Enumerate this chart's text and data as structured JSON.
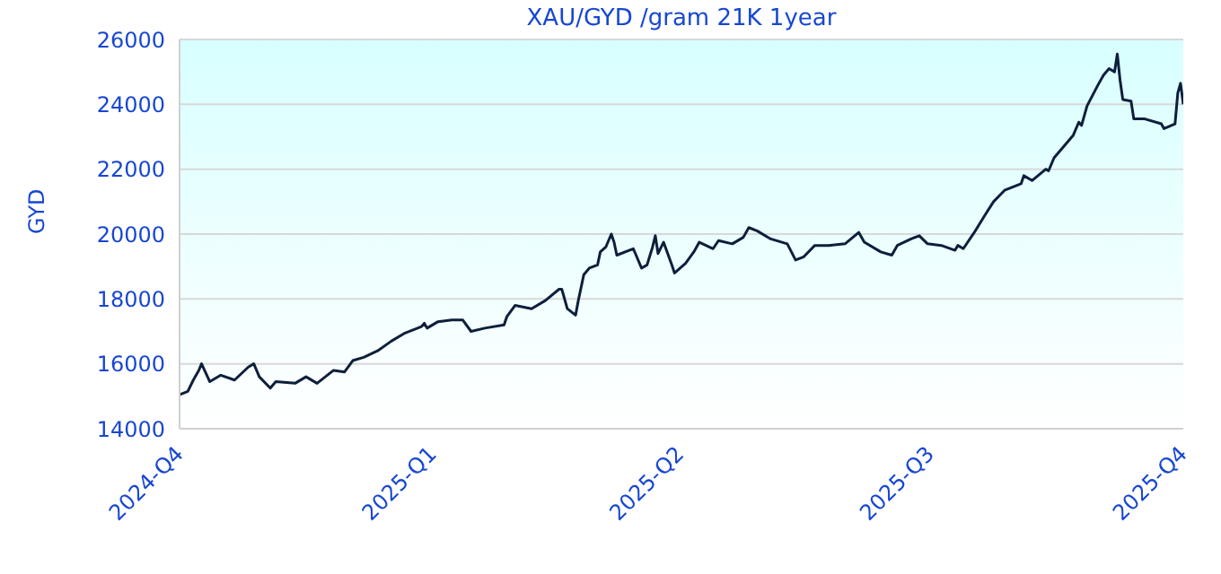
{
  "chart_data": {
    "type": "line",
    "title": "XAU/GYD /gram 21K 1year",
    "ylabel": "GYD",
    "x": [
      "2024-10-01",
      "2024-10-04",
      "2024-10-06",
      "2024-10-08",
      "2024-10-09",
      "2024-10-12",
      "2024-10-16",
      "2024-10-21",
      "2024-10-26",
      "2024-10-28",
      "2024-10-30",
      "2024-11-03",
      "2024-11-05",
      "2024-11-12",
      "2024-11-16",
      "2024-11-20",
      "2024-11-26",
      "2024-11-30",
      "2024-12-03",
      "2024-12-07",
      "2024-12-12",
      "2024-12-17",
      "2024-12-22",
      "2024-12-28",
      "2024-12-29",
      "2024-12-30",
      "2025-01-03",
      "2025-01-08",
      "2025-01-12",
      "2025-01-15",
      "2025-01-20",
      "2025-01-27",
      "2025-01-28",
      "2025-01-31",
      "2025-02-06",
      "2025-02-11",
      "2025-02-16",
      "2025-02-17",
      "2025-02-19",
      "2025-02-22",
      "2025-02-23",
      "2025-02-25",
      "2025-02-27",
      "2025-03-02",
      "2025-03-03",
      "2025-03-05",
      "2025-03-07",
      "2025-03-08",
      "2025-03-09",
      "2025-03-15",
      "2025-03-18",
      "2025-03-20",
      "2025-03-22",
      "2025-03-23",
      "2025-03-24",
      "2025-03-26",
      "2025-03-29",
      "2025-03-30",
      "2025-04-03",
      "2025-04-06",
      "2025-04-08",
      "2025-04-13",
      "2025-04-15",
      "2025-04-20",
      "2025-04-24",
      "2025-04-26",
      "2025-04-29",
      "2025-05-04",
      "2025-05-10",
      "2025-05-13",
      "2025-05-16",
      "2025-05-20",
      "2025-05-25",
      "2025-05-31",
      "2025-06-05",
      "2025-06-07",
      "2025-06-13",
      "2025-06-17",
      "2025-06-19",
      "2025-06-24",
      "2025-06-27",
      "2025-06-30",
      "2025-07-05",
      "2025-07-10",
      "2025-07-11",
      "2025-07-13",
      "2025-07-17",
      "2025-07-21",
      "2025-07-24",
      "2025-07-28",
      "2025-08-03",
      "2025-08-04",
      "2025-08-07",
      "2025-08-12",
      "2025-08-13",
      "2025-08-15",
      "2025-08-20",
      "2025-08-22",
      "2025-08-24",
      "2025-08-25",
      "2025-08-27",
      "2025-08-31",
      "2025-09-02",
      "2025-09-04",
      "2025-09-06",
      "2025-09-07",
      "2025-09-08",
      "2025-09-09",
      "2025-09-12",
      "2025-09-13",
      "2025-09-17",
      "2025-09-23",
      "2025-09-24",
      "2025-09-28",
      "2025-09-29",
      "2025-09-30",
      "2025-10-01"
    ],
    "series": [
      {
        "color": "#0d1f3c",
        "values": [
          15050,
          15150,
          15500,
          15800,
          16000,
          15450,
          15650,
          15500,
          15900,
          16000,
          15600,
          15250,
          15450,
          15400,
          15600,
          15400,
          15800,
          15750,
          16100,
          16200,
          16400,
          16700,
          16950,
          17150,
          17250,
          17100,
          17300,
          17350,
          17350,
          17000,
          17100,
          17200,
          17450,
          17800,
          17700,
          17950,
          18300,
          18300,
          17700,
          17500,
          17950,
          18750,
          18950,
          19050,
          19450,
          19600,
          20000,
          19750,
          19350,
          19550,
          18950,
          19050,
          19600,
          19950,
          19400,
          19750,
          19050,
          18800,
          19100,
          19450,
          19750,
          19550,
          19800,
          19700,
          19900,
          20200,
          20100,
          19850,
          19700,
          19200,
          19300,
          19650,
          19650,
          19700,
          20050,
          19750,
          19450,
          19350,
          19650,
          19850,
          19950,
          19700,
          19650,
          19500,
          19650,
          19550,
          20050,
          20600,
          21000,
          21350,
          21550,
          21800,
          21650,
          22000,
          21950,
          22350,
          22850,
          23050,
          23450,
          23350,
          23950,
          24600,
          24900,
          25100,
          25000,
          25550,
          24750,
          24150,
          24100,
          23550,
          23550,
          23400,
          23250,
          23400,
          24350,
          24650,
          24000
        ]
      }
    ],
    "xlim": [
      "2024-10-01",
      "2025-10-01"
    ],
    "xticks": [
      {
        "value": "2024-10-01",
        "label": "2024-Q4"
      },
      {
        "value": "2025-01-01",
        "label": "2025-Q1"
      },
      {
        "value": "2025-04-01",
        "label": "2025-Q2"
      },
      {
        "value": "2025-07-01",
        "label": "2025-Q3"
      },
      {
        "value": "2025-10-01",
        "label": "2025-Q4"
      }
    ],
    "ylim": [
      14000,
      26000
    ],
    "yticks": [
      14000,
      16000,
      18000,
      20000,
      22000,
      24000,
      26000
    ],
    "grid": "y",
    "legend": false,
    "marker": "none",
    "line_style": "solid"
  }
}
